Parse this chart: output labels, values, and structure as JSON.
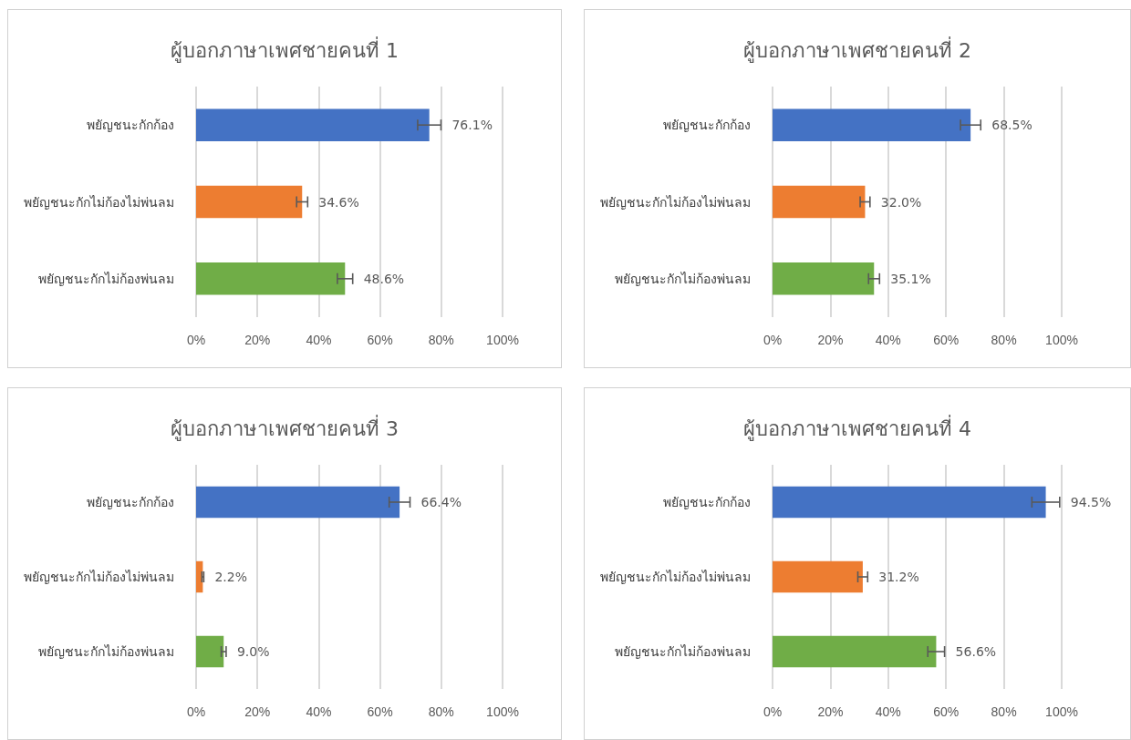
{
  "chart_data": [
    {
      "type": "bar",
      "orientation": "horizontal",
      "title": "ผู้บอกภาษาเพศชายคนที่ 1",
      "categories": [
        "พยัญชนะกักก้อง",
        "พยัญชนะกักไม่ก้องไม่พ่นลม",
        "พยัญชนะกักไม่ก้องพ่นลม"
      ],
      "values": [
        76.1,
        34.6,
        48.6
      ],
      "colors": [
        "#4472c4",
        "#ed7d31",
        "#70ad47"
      ],
      "errors": [
        3.8,
        1.8,
        2.5
      ],
      "value_labels": [
        "76.1%",
        "34.6%",
        "48.6%"
      ],
      "xlim": [
        0,
        100
      ],
      "xticks": [
        {
          "value": 0,
          "label": "0%"
        },
        {
          "value": 20,
          "label": "20%"
        },
        {
          "value": 40,
          "label": "40%"
        },
        {
          "value": 60,
          "label": "60%"
        },
        {
          "value": 80,
          "label": "80%"
        },
        {
          "value": 100,
          "label": "100%"
        }
      ],
      "grid": "x"
    },
    {
      "type": "bar",
      "orientation": "horizontal",
      "title": "ผู้บอกภาษาเพศชายคนที่ 2",
      "categories": [
        "พยัญชนะกักก้อง",
        "พยัญชนะกักไม่ก้องไม่พ่นลม",
        "พยัญชนะกักไม่ก้องพ่นลม"
      ],
      "values": [
        68.5,
        32.0,
        35.1
      ],
      "colors": [
        "#4472c4",
        "#ed7d31",
        "#70ad47"
      ],
      "errors": [
        3.5,
        1.7,
        1.9
      ],
      "value_labels": [
        "68.5%",
        "32.0%",
        "35.1%"
      ],
      "xlim": [
        0,
        100
      ],
      "xticks": [
        {
          "value": 0,
          "label": "0%"
        },
        {
          "value": 20,
          "label": "20%"
        },
        {
          "value": 40,
          "label": "40%"
        },
        {
          "value": 60,
          "label": "60%"
        },
        {
          "value": 80,
          "label": "80%"
        },
        {
          "value": 100,
          "label": "100%"
        }
      ],
      "grid": "x"
    },
    {
      "type": "bar",
      "orientation": "horizontal",
      "title": "ผู้บอกภาษาเพศชายคนที่ 3",
      "categories": [
        "พยัญชนะกักก้อง",
        "พยัญชนะกักไม่ก้องไม่พ่นลม",
        "พยัญชนะกักไม่ก้องพ่นลม"
      ],
      "values": [
        66.4,
        2.2,
        9.0
      ],
      "colors": [
        "#4472c4",
        "#ed7d31",
        "#70ad47"
      ],
      "errors": [
        3.4,
        0.3,
        0.8
      ],
      "value_labels": [
        "66.4%",
        "2.2%",
        "9.0%"
      ],
      "xlim": [
        0,
        100
      ],
      "xticks": [
        {
          "value": 0,
          "label": "0%"
        },
        {
          "value": 20,
          "label": "20%"
        },
        {
          "value": 40,
          "label": "40%"
        },
        {
          "value": 60,
          "label": "60%"
        },
        {
          "value": 80,
          "label": "80%"
        },
        {
          "value": 100,
          "label": "100%"
        }
      ],
      "grid": "x"
    },
    {
      "type": "bar",
      "orientation": "horizontal",
      "title": "ผู้บอกภาษาเพศชายคนที่ 4",
      "categories": [
        "พยัญชนะกักก้อง",
        "พยัญชนะกักไม่ก้องไม่พ่นลม",
        "พยัญชนะกักไม่ก้องพ่นลม"
      ],
      "values": [
        94.5,
        31.2,
        56.6
      ],
      "colors": [
        "#4472c4",
        "#ed7d31",
        "#70ad47"
      ],
      "errors": [
        4.8,
        1.7,
        2.9
      ],
      "value_labels": [
        "94.5%",
        "31.2%",
        "56.6%"
      ],
      "xlim": [
        0,
        100
      ],
      "xticks": [
        {
          "value": 0,
          "label": "0%"
        },
        {
          "value": 20,
          "label": "20%"
        },
        {
          "value": 40,
          "label": "40%"
        },
        {
          "value": 60,
          "label": "60%"
        },
        {
          "value": 80,
          "label": "80%"
        },
        {
          "value": 100,
          "label": "100%"
        }
      ],
      "grid": "x"
    }
  ]
}
